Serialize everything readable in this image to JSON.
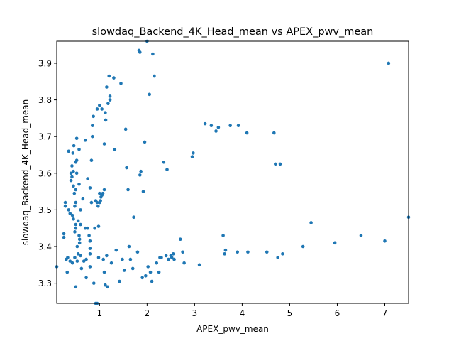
{
  "chart_data": {
    "type": "scatter",
    "title": "slowdaq_Backend_4K_Head_mean vs APEX_pwv_mean",
    "xlabel": "APEX_pwv_mean",
    "ylabel": "slowdaq_Backend_4K_Head_mean",
    "xlim": [
      0.1,
      7.5
    ],
    "ylim": [
      3.245,
      3.96
    ],
    "xticks": [
      1,
      2,
      3,
      4,
      5,
      6,
      7
    ],
    "yticks": [
      3.3,
      3.4,
      3.5,
      3.6,
      3.7,
      3.8,
      3.9
    ],
    "grid": false,
    "legend": "none",
    "marker_color": "#1f77b4",
    "series": [
      {
        "points": [
          [
            0.1,
            3.345
          ],
          [
            0.25,
            3.425
          ],
          [
            0.25,
            3.435
          ],
          [
            0.28,
            3.51
          ],
          [
            0.28,
            3.52
          ],
          [
            0.3,
            3.365
          ],
          [
            0.32,
            3.33
          ],
          [
            0.33,
            3.37
          ],
          [
            0.35,
            3.5
          ],
          [
            0.35,
            3.66
          ],
          [
            0.38,
            3.36
          ],
          [
            0.38,
            3.49
          ],
          [
            0.4,
            3.58
          ],
          [
            0.4,
            3.6
          ],
          [
            0.42,
            3.59
          ],
          [
            0.42,
            3.62
          ],
          [
            0.43,
            3.355
          ],
          [
            0.43,
            3.485
          ],
          [
            0.44,
            3.655
          ],
          [
            0.45,
            3.605
          ],
          [
            0.45,
            3.565
          ],
          [
            0.45,
            3.475
          ],
          [
            0.46,
            3.675
          ],
          [
            0.47,
            3.545
          ],
          [
            0.48,
            3.37
          ],
          [
            0.48,
            3.44
          ],
          [
            0.48,
            3.51
          ],
          [
            0.5,
            3.29
          ],
          [
            0.5,
            3.63
          ],
          [
            0.5,
            3.555
          ],
          [
            0.5,
            3.52
          ],
          [
            0.5,
            3.46
          ],
          [
            0.5,
            3.45
          ],
          [
            0.52,
            3.695
          ],
          [
            0.52,
            3.635
          ],
          [
            0.52,
            3.6
          ],
          [
            0.53,
            3.4
          ],
          [
            0.53,
            3.36
          ],
          [
            0.55,
            3.47
          ],
          [
            0.55,
            3.38
          ],
          [
            0.57,
            3.665
          ],
          [
            0.57,
            3.57
          ],
          [
            0.57,
            3.43
          ],
          [
            0.58,
            3.42
          ],
          [
            0.58,
            3.41
          ],
          [
            0.6,
            3.5
          ],
          [
            0.6,
            3.46
          ],
          [
            0.6,
            3.375
          ],
          [
            0.62,
            3.34
          ],
          [
            0.65,
            3.53
          ],
          [
            0.67,
            3.36
          ],
          [
            0.7,
            3.69
          ],
          [
            0.7,
            3.45
          ],
          [
            0.72,
            3.365
          ],
          [
            0.72,
            3.315
          ],
          [
            0.75,
            3.585
          ],
          [
            0.75,
            3.45
          ],
          [
            0.78,
            3.43
          ],
          [
            0.8,
            3.56
          ],
          [
            0.8,
            3.415
          ],
          [
            0.8,
            3.395
          ],
          [
            0.8,
            3.38
          ],
          [
            0.8,
            3.345
          ],
          [
            0.83,
            3.635
          ],
          [
            0.83,
            3.52
          ],
          [
            0.85,
            3.73
          ],
          [
            0.85,
            3.7
          ],
          [
            0.87,
            3.755
          ],
          [
            0.88,
            3.3
          ],
          [
            0.9,
            3.45
          ],
          [
            0.92,
            3.525
          ],
          [
            0.92,
            3.245
          ],
          [
            0.95,
            3.775
          ],
          [
            0.95,
            3.52
          ],
          [
            0.95,
            3.245
          ],
          [
            0.97,
            3.51
          ],
          [
            0.98,
            3.37
          ],
          [
            0.98,
            3.455
          ],
          [
            1.0,
            3.785
          ],
          [
            1.0,
            3.545
          ],
          [
            1.0,
            3.52
          ],
          [
            1.02,
            3.525
          ],
          [
            1.03,
            3.535
          ],
          [
            1.05,
            3.775
          ],
          [
            1.05,
            3.54
          ],
          [
            1.07,
            3.545
          ],
          [
            1.08,
            3.365
          ],
          [
            1.1,
            3.68
          ],
          [
            1.1,
            3.555
          ],
          [
            1.1,
            3.33
          ],
          [
            1.12,
            3.765
          ],
          [
            1.12,
            3.295
          ],
          [
            1.13,
            3.745
          ],
          [
            1.15,
            3.835
          ],
          [
            1.15,
            3.375
          ],
          [
            1.17,
            3.29
          ],
          [
            1.18,
            3.79
          ],
          [
            1.2,
            3.865
          ],
          [
            1.22,
            3.81
          ],
          [
            1.22,
            3.8
          ],
          [
            1.25,
            3.355
          ],
          [
            1.3,
            3.86
          ],
          [
            1.32,
            3.665
          ],
          [
            1.35,
            3.39
          ],
          [
            1.42,
            3.305
          ],
          [
            1.45,
            3.845
          ],
          [
            1.48,
            3.365
          ],
          [
            1.52,
            3.335
          ],
          [
            1.55,
            3.72
          ],
          [
            1.57,
            3.615
          ],
          [
            1.6,
            3.555
          ],
          [
            1.62,
            3.4
          ],
          [
            1.65,
            3.365
          ],
          [
            1.7,
            3.34
          ],
          [
            1.72,
            3.48
          ],
          [
            1.8,
            3.385
          ],
          [
            1.83,
            3.935
          ],
          [
            1.85,
            3.93
          ],
          [
            1.85,
            3.595
          ],
          [
            1.87,
            3.605
          ],
          [
            1.9,
            3.315
          ],
          [
            1.92,
            3.55
          ],
          [
            1.95,
            3.685
          ],
          [
            1.97,
            3.32
          ],
          [
            2.0,
            3.96
          ],
          [
            2.02,
            3.345
          ],
          [
            2.05,
            3.815
          ],
          [
            2.07,
            3.33
          ],
          [
            2.1,
            3.305
          ],
          [
            2.12,
            3.925
          ],
          [
            2.15,
            3.865
          ],
          [
            2.2,
            3.355
          ],
          [
            2.25,
            3.33
          ],
          [
            2.27,
            3.37
          ],
          [
            2.3,
            3.37
          ],
          [
            2.35,
            3.63
          ],
          [
            2.4,
            3.375
          ],
          [
            2.42,
            3.61
          ],
          [
            2.45,
            3.365
          ],
          [
            2.5,
            3.375
          ],
          [
            2.52,
            3.37
          ],
          [
            2.55,
            3.38
          ],
          [
            2.57,
            3.365
          ],
          [
            2.7,
            3.42
          ],
          [
            2.75,
            3.385
          ],
          [
            2.78,
            3.355
          ],
          [
            2.95,
            3.645
          ],
          [
            2.97,
            3.655
          ],
          [
            3.1,
            3.35
          ],
          [
            3.22,
            3.735
          ],
          [
            3.35,
            3.73
          ],
          [
            3.45,
            3.715
          ],
          [
            3.5,
            3.725
          ],
          [
            3.6,
            3.43
          ],
          [
            3.63,
            3.38
          ],
          [
            3.65,
            3.39
          ],
          [
            3.75,
            3.73
          ],
          [
            3.9,
            3.385
          ],
          [
            3.92,
            3.73
          ],
          [
            4.1,
            3.71
          ],
          [
            4.12,
            3.385
          ],
          [
            4.52,
            3.385
          ],
          [
            4.67,
            3.71
          ],
          [
            4.7,
            3.625
          ],
          [
            4.75,
            3.37
          ],
          [
            4.8,
            3.625
          ],
          [
            4.85,
            3.38
          ],
          [
            5.28,
            3.4
          ],
          [
            5.45,
            3.465
          ],
          [
            5.95,
            3.41
          ],
          [
            6.5,
            3.43
          ],
          [
            7.0,
            3.415
          ],
          [
            7.08,
            3.9
          ],
          [
            7.5,
            3.48
          ]
        ]
      }
    ]
  }
}
